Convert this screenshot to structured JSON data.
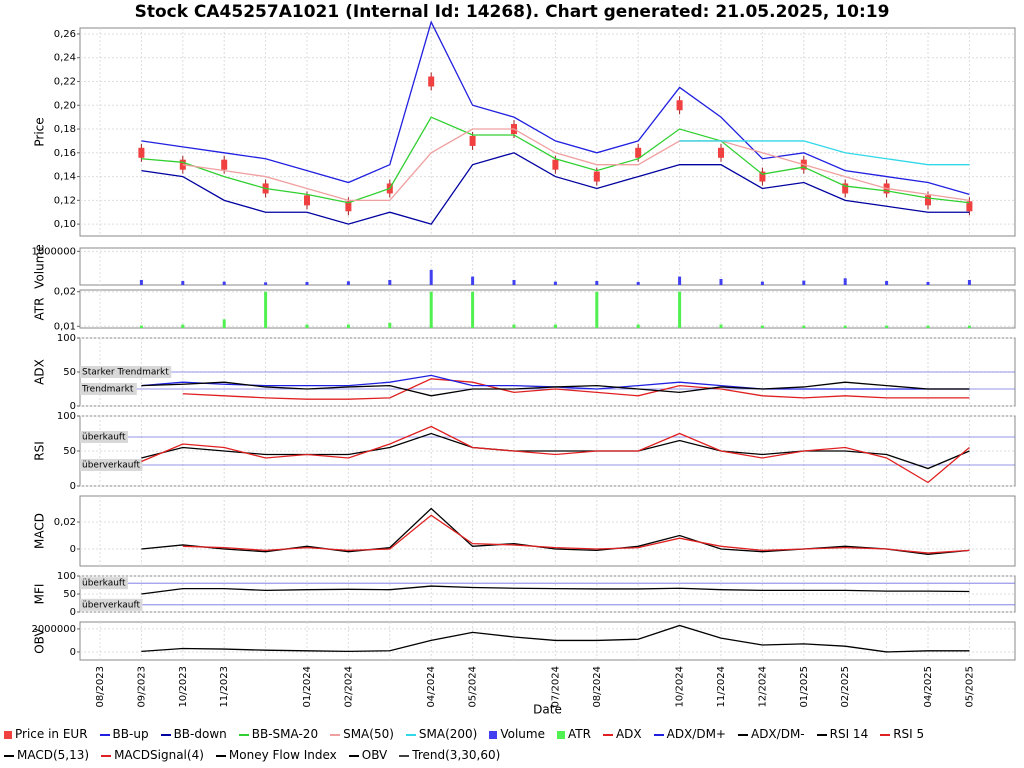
{
  "chart_data": [
    {
      "type": "line",
      "title": "Stock CA45257A1021 (Internal Id: 14268). Chart generated: 21.05.2025, 10:19",
      "ylabel": "Price",
      "ylim": [
        0.09,
        0.265
      ],
      "yticks": [
        {
          "value": 0.1,
          "label": "0,10"
        },
        {
          "value": 0.12,
          "label": "0,12"
        },
        {
          "value": 0.14,
          "label": "0,14"
        },
        {
          "value": 0.16,
          "label": "0,16"
        },
        {
          "value": 0.18,
          "label": "0,18"
        },
        {
          "value": 0.2,
          "label": "0,20"
        },
        {
          "value": 0.22,
          "label": "0,22"
        },
        {
          "value": 0.24,
          "label": "0,24"
        },
        {
          "value": 0.26,
          "label": "0,26"
        }
      ],
      "grid": true,
      "series": [
        {
          "name": "Price in EUR",
          "style": "candle",
          "color": "#f04040",
          "values": [
            null,
            0.16,
            0.15,
            0.15,
            0.13,
            0.12,
            0.115,
            0.13,
            0.22,
            0.17,
            0.18,
            0.15,
            0.14,
            0.16,
            0.2,
            0.16,
            0.14,
            0.15,
            0.13,
            0.13,
            0.12,
            0.115
          ]
        },
        {
          "name": "BB-up",
          "style": "line",
          "color": "#2020e0",
          "values": [
            null,
            0.17,
            0.165,
            0.16,
            0.155,
            0.145,
            0.135,
            0.15,
            0.27,
            0.2,
            0.19,
            0.17,
            0.16,
            0.17,
            0.215,
            0.19,
            0.155,
            0.16,
            0.145,
            0.14,
            0.135,
            0.125
          ]
        },
        {
          "name": "BB-down",
          "style": "line",
          "color": "#0000a0",
          "values": [
            null,
            0.145,
            0.14,
            0.12,
            0.11,
            0.11,
            0.1,
            0.11,
            0.1,
            0.15,
            0.16,
            0.14,
            0.13,
            0.14,
            0.15,
            0.15,
            0.13,
            0.135,
            0.12,
            0.115,
            0.11,
            0.11
          ]
        },
        {
          "name": "BB-SMA-20",
          "style": "line",
          "color": "#30d030",
          "values": [
            null,
            0.155,
            0.152,
            0.14,
            0.13,
            0.125,
            0.118,
            0.13,
            0.19,
            0.175,
            0.175,
            0.155,
            0.145,
            0.155,
            0.18,
            0.17,
            0.142,
            0.148,
            0.132,
            0.128,
            0.122,
            0.118
          ]
        },
        {
          "name": "SMA(50)",
          "style": "line",
          "color": "#f0a0a0",
          "values": [
            null,
            null,
            0.15,
            0.145,
            0.14,
            0.13,
            0.12,
            0.12,
            0.16,
            0.18,
            0.18,
            0.16,
            0.15,
            0.15,
            0.17,
            0.17,
            0.16,
            0.15,
            0.14,
            0.13,
            0.125,
            0.12
          ]
        },
        {
          "name": "SMA(200)",
          "style": "line",
          "color": "#30d8e8",
          "values": [
            null,
            null,
            null,
            null,
            null,
            null,
            null,
            null,
            null,
            null,
            null,
            null,
            null,
            null,
            0.17,
            0.17,
            0.17,
            0.17,
            0.16,
            0.155,
            0.15,
            0.15
          ]
        }
      ]
    },
    {
      "type": "bar",
      "ylabel": "Volume",
      "ylim": [
        0,
        1100000
      ],
      "yticks": [
        1000000
      ],
      "grid": true,
      "series": [
        {
          "name": "Volume",
          "style": "bar",
          "color": "#4040f0",
          "values": [
            null,
            150000,
            120000,
            100000,
            80000,
            90000,
            110000,
            150000,
            450000,
            250000,
            150000,
            100000,
            120000,
            90000,
            250000,
            180000,
            100000,
            130000,
            200000,
            120000,
            90000,
            150000
          ]
        }
      ]
    },
    {
      "type": "bar",
      "ylabel": "ATR",
      "ylim": [
        0.0095,
        0.0205
      ],
      "yticks": [
        {
          "value": 0.01,
          "label": "0,01"
        },
        {
          "value": 0.02,
          "label": "0,02"
        }
      ],
      "grid": true,
      "series": [
        {
          "name": "ATR",
          "style": "bar",
          "color": "#50f050",
          "values": [
            null,
            0.0102,
            0.0105,
            0.012,
            0.02,
            0.0105,
            0.0105,
            0.011,
            0.02,
            0.02,
            0.0105,
            0.0105,
            0.02,
            0.0105,
            0.02,
            0.0105,
            0.0102,
            0.0102,
            0.0102,
            0.0102,
            0.0102,
            0.0102
          ]
        }
      ]
    },
    {
      "type": "line",
      "ylabel": "ADX",
      "ylim": [
        0,
        100
      ],
      "yticks": [
        0,
        50,
        100
      ],
      "grid": true,
      "hlines": [
        {
          "value": 50,
          "label": "Starker Trendmarkt"
        },
        {
          "value": 25,
          "label": "Trendmarkt"
        }
      ],
      "series": [
        {
          "name": "ADX",
          "style": "line",
          "color": "#e02020",
          "values": [
            null,
            null,
            18,
            15,
            12,
            10,
            10,
            12,
            40,
            35,
            20,
            25,
            20,
            15,
            30,
            25,
            15,
            12,
            15,
            12,
            12,
            12
          ]
        },
        {
          "name": "ADX/DM+",
          "style": "line",
          "color": "#2020e0",
          "values": [
            null,
            30,
            35,
            32,
            30,
            30,
            30,
            35,
            45,
            30,
            30,
            28,
            25,
            30,
            35,
            30,
            25,
            25,
            25,
            25,
            25,
            25
          ]
        },
        {
          "name": "ADX/DM-",
          "style": "line",
          "color": "#000000",
          "values": [
            null,
            30,
            32,
            35,
            28,
            25,
            28,
            30,
            15,
            25,
            25,
            28,
            30,
            25,
            20,
            28,
            25,
            28,
            35,
            30,
            25,
            25
          ]
        }
      ]
    },
    {
      "type": "line",
      "ylabel": "RSI",
      "ylim": [
        0,
        100
      ],
      "yticks": [
        0,
        50,
        100
      ],
      "grid": true,
      "hlines": [
        {
          "value": 70,
          "label": "überkauft"
        },
        {
          "value": 30,
          "label": "überverkauft"
        }
      ],
      "series": [
        {
          "name": "RSI 14",
          "style": "line",
          "color": "#000000",
          "values": [
            null,
            40,
            55,
            50,
            45,
            45,
            45,
            55,
            75,
            55,
            50,
            50,
            50,
            50,
            65,
            50,
            45,
            50,
            50,
            45,
            25,
            50
          ]
        },
        {
          "name": "RSI 5",
          "style": "line",
          "color": "#e02020",
          "values": [
            null,
            35,
            60,
            55,
            40,
            45,
            40,
            60,
            85,
            55,
            50,
            45,
            50,
            50,
            75,
            50,
            40,
            50,
            55,
            40,
            5,
            55
          ]
        }
      ]
    },
    {
      "type": "line",
      "ylabel": "MACD",
      "ylim": [
        -0.0126,
        0.0393
      ],
      "yticks": [
        0,
        {
          "value": 0.02,
          "label": "0,02"
        }
      ],
      "grid": true,
      "series": [
        {
          "name": "MACD(5,13)",
          "style": "line",
          "color": "#000000",
          "values": [
            null,
            0.0,
            0.003,
            0.0,
            -0.002,
            0.002,
            -0.002,
            0.001,
            0.03,
            0.002,
            0.004,
            0.0,
            -0.001,
            0.002,
            0.01,
            0.0,
            -0.002,
            0.0,
            0.002,
            0.0,
            -0.004,
            -0.001
          ]
        },
        {
          "name": "MACDSignal(4)",
          "style": "line",
          "color": "#e02020",
          "values": [
            null,
            null,
            0.002,
            0.001,
            -0.001,
            0.001,
            -0.001,
            0.0,
            0.025,
            0.004,
            0.003,
            0.001,
            0.0,
            0.001,
            0.008,
            0.002,
            -0.001,
            0.0,
            0.001,
            0.0,
            -0.003,
            -0.001
          ]
        }
      ]
    },
    {
      "type": "line",
      "ylabel": "MFI",
      "ylim": [
        0,
        100
      ],
      "yticks": [
        0,
        50,
        100
      ],
      "grid": true,
      "hlines": [
        {
          "value": 80,
          "label": "überkauft"
        },
        {
          "value": 20,
          "label": "überverkauft"
        }
      ],
      "series": [
        {
          "name": "Money Flow Index",
          "style": "line",
          "color": "#000000",
          "values": [
            null,
            50,
            65,
            65,
            60,
            62,
            63,
            62,
            72,
            68,
            66,
            65,
            64,
            64,
            66,
            62,
            60,
            60,
            60,
            58,
            58,
            57
          ]
        }
      ]
    },
    {
      "type": "line",
      "ylabel": "OBV",
      "xlabel": "Date",
      "ylim": [
        -700000,
        2600000
      ],
      "yticks": [
        0,
        2000000
      ],
      "grid": true,
      "categories": [
        "08/2023",
        "09/2023",
        "10/2023",
        "11/2023",
        null,
        "01/2024",
        "02/2024",
        null,
        "04/2024",
        "05/2024",
        null,
        "07/2024",
        "08/2024",
        null,
        "10/2024",
        "11/2024",
        "12/2024",
        "01/2025",
        "02/2025",
        null,
        "04/2025",
        "05/2025"
      ],
      "series": [
        {
          "name": "OBV",
          "style": "line",
          "color": "#000000",
          "values": [
            null,
            50000,
            300000,
            250000,
            150000,
            100000,
            50000,
            100000,
            1000000,
            1700000,
            1300000,
            1000000,
            1000000,
            1100000,
            2300000,
            1200000,
            600000,
            700000,
            500000,
            0,
            100000,
            100000
          ]
        },
        {
          "name": "Trend(3,30,60)",
          "style": "line",
          "color": "#404040",
          "values": [
            null,
            null,
            null,
            null,
            null,
            null,
            null,
            null,
            null,
            null,
            null,
            null,
            null,
            null,
            null,
            null,
            null,
            null,
            null,
            null,
            null,
            null
          ]
        }
      ]
    }
  ]
}
